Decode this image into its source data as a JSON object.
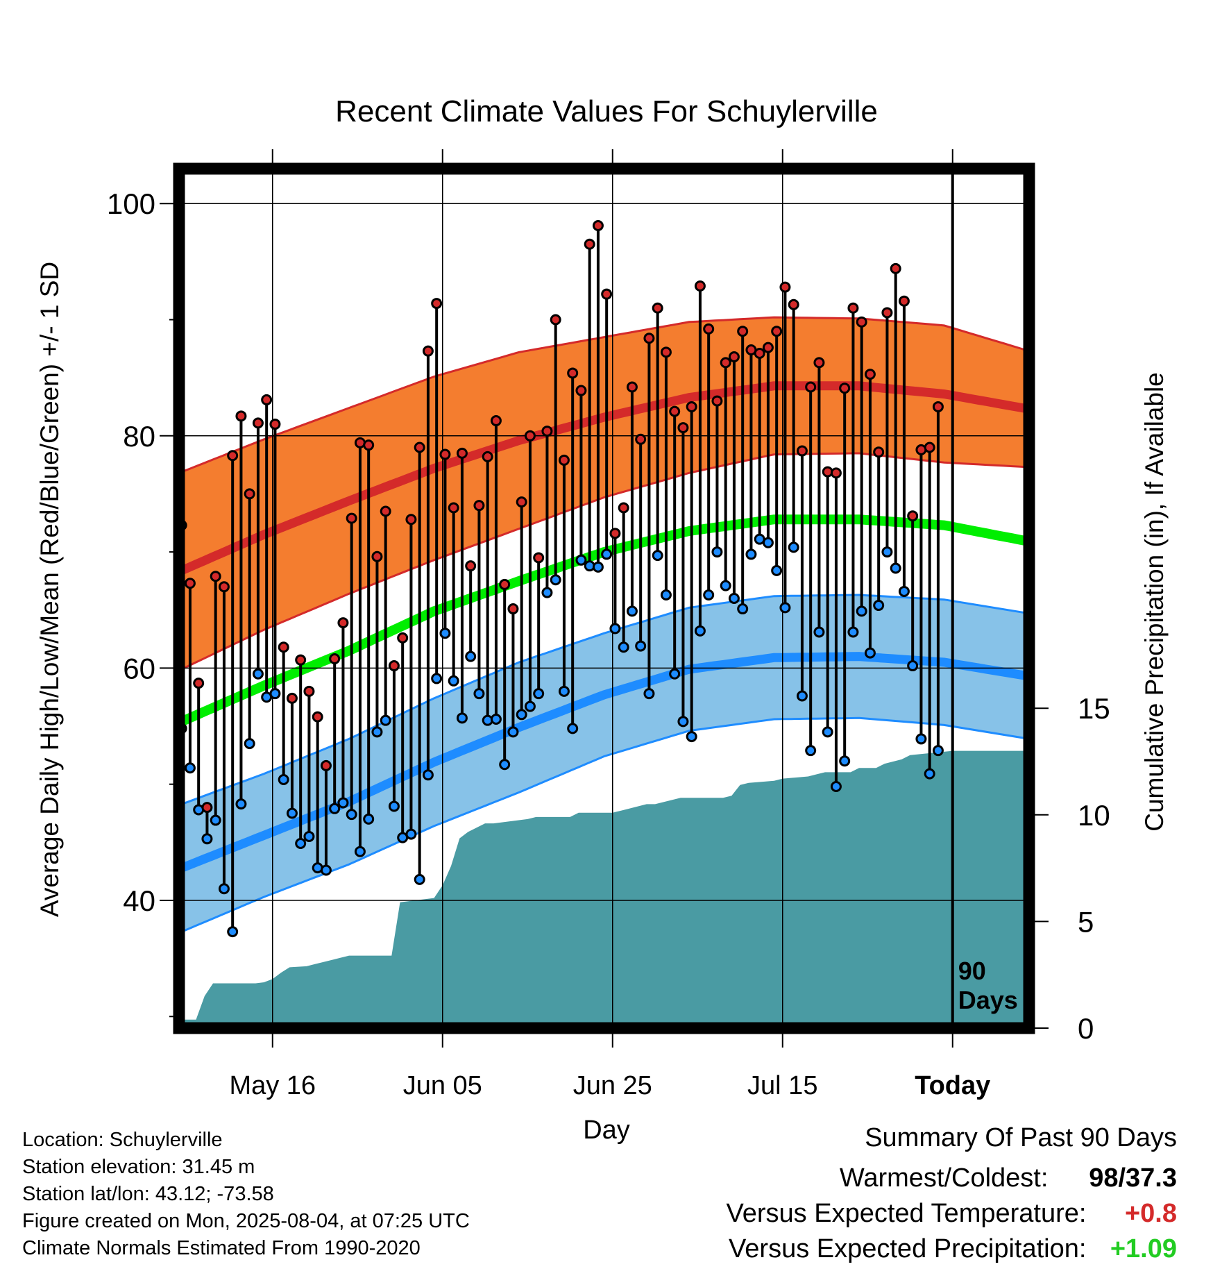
{
  "chart_data": {
    "type": "line",
    "title": "Recent Climate Values For Schuylerville",
    "xlabel": "Day",
    "ylabel": "Average Daily High/Low/Mean (Red/Blue/Green) +/- 1 SD",
    "y2label": "Cumulative Precipitation (in), If Available",
    "ylim": [
      29,
      103
    ],
    "y2lim": [
      0,
      40.3
    ],
    "yticks": [
      100,
      80,
      60,
      40
    ],
    "y2ticks": [
      15,
      10,
      5,
      0
    ],
    "x_range_days": [
      0,
      100
    ],
    "xticks": [
      {
        "label": "May 16",
        "day": 11
      },
      {
        "label": "Jun 05",
        "day": 31
      },
      {
        "label": "Jun 25",
        "day": 51
      },
      {
        "label": "Jul 15",
        "day": 71
      },
      {
        "label": "Today",
        "day": 91
      }
    ],
    "today_marker": {
      "day": 91,
      "label_line1": "90",
      "label_line2": "Days"
    },
    "grid": true,
    "normals": {
      "days": [
        0,
        10,
        20,
        30,
        40,
        50,
        60,
        70,
        80,
        90,
        100
      ],
      "high_mean": [
        68.3,
        71.5,
        74.4,
        77.2,
        79.6,
        81.6,
        83.3,
        84.3,
        84.3,
        83.6,
        82.3
      ],
      "high_sd": [
        8.5,
        8.2,
        8.0,
        7.9,
        7.6,
        6.9,
        6.5,
        5.9,
        5.8,
        5.9,
        5.0
      ],
      "low_mean": [
        42.7,
        45.6,
        48.5,
        51.9,
        54.9,
        57.7,
        59.9,
        60.9,
        61.0,
        60.5,
        59.3
      ],
      "low_sd": [
        5.5,
        5.3,
        5.4,
        5.5,
        5.6,
        5.3,
        5.3,
        5.3,
        5.3,
        5.4,
        5.4
      ],
      "mean": [
        55.3,
        58.5,
        61.5,
        64.9,
        67.5,
        70.0,
        71.8,
        72.8,
        72.8,
        72.3,
        70.9
      ],
      "colors": {
        "high_band": "#f47d2f",
        "high_line": "#d42a2a",
        "low_band": "#87c2e8",
        "low_line": "#1e8cff",
        "mean_line": "#00ee00"
      }
    },
    "series": [
      {
        "name": "High",
        "color": "#d42a2a",
        "values": [
          72.3,
          67.3,
          58.7,
          48.0,
          67.9,
          67.0,
          78.3,
          81.7,
          75.0,
          81.1,
          83.1,
          81.0,
          61.8,
          57.4,
          60.7,
          58.0,
          55.8,
          51.6,
          60.8,
          63.9,
          72.9,
          79.4,
          79.2,
          69.6,
          73.5,
          60.2,
          62.6,
          72.8,
          79.0,
          87.3,
          91.4,
          78.4,
          73.8,
          78.5,
          68.8,
          74.0,
          78.2,
          81.3,
          67.2,
          65.1,
          74.3,
          80.0,
          69.5,
          80.4,
          90.0,
          77.9,
          85.4,
          83.9,
          96.5,
          98.1,
          92.2,
          71.6,
          73.8,
          84.2,
          79.7,
          88.4,
          91.0,
          87.2,
          82.1,
          80.7,
          82.5,
          92.9,
          89.2,
          83.0,
          86.3,
          86.8,
          89.0,
          87.4,
          87.1,
          87.6,
          89.0,
          92.8,
          91.3,
          78.7,
          84.2,
          86.3,
          76.9,
          76.8,
          84.1,
          91.0,
          89.8,
          85.3,
          78.6,
          90.6,
          94.4,
          91.6,
          73.1,
          78.8,
          79.0,
          82.5
        ]
      },
      {
        "name": "Low",
        "color": "#1e8cff",
        "values": [
          54.8,
          51.4,
          47.8,
          45.3,
          46.9,
          41.0,
          37.3,
          48.3,
          53.5,
          59.5,
          57.5,
          57.8,
          50.4,
          47.5,
          44.9,
          45.5,
          42.8,
          42.6,
          47.9,
          48.4,
          47.4,
          44.2,
          47.0,
          54.5,
          55.5,
          48.1,
          45.4,
          45.7,
          41.8,
          50.8,
          59.1,
          63.0,
          58.9,
          55.7,
          61.0,
          57.8,
          55.5,
          55.6,
          51.7,
          54.5,
          56.0,
          56.7,
          57.8,
          66.5,
          67.6,
          58.0,
          54.8,
          69.3,
          68.8,
          68.7,
          69.8,
          63.4,
          61.8,
          64.9,
          61.9,
          57.8,
          69.7,
          66.3,
          59.5,
          55.4,
          54.1,
          63.2,
          66.3,
          70.0,
          67.1,
          66.0,
          65.1,
          69.8,
          71.1,
          70.8,
          68.4,
          65.2,
          70.4,
          57.6,
          52.9,
          63.1,
          54.5,
          49.8,
          52.0,
          63.1,
          64.9,
          61.3,
          65.4,
          70.0,
          68.6,
          66.6,
          60.2,
          53.9,
          50.9,
          52.9
        ]
      },
      {
        "name": "Cumulative Precipitation",
        "color": "#4a9ba3",
        "days": [
          0,
          2,
          3,
          4,
          9,
          10,
          11,
          12,
          13,
          15,
          16,
          17,
          18,
          19,
          20,
          25,
          26,
          30,
          31,
          32,
          33,
          34,
          36,
          37,
          41,
          42,
          43,
          46,
          47,
          51,
          52,
          53,
          55,
          56,
          59,
          60,
          64,
          65,
          66,
          67,
          70,
          71,
          74,
          75,
          76,
          79,
          80,
          82,
          83,
          85,
          86,
          91,
          100
        ],
        "values": [
          0.4,
          0.4,
          1.5,
          2.1,
          2.1,
          2.15,
          2.3,
          2.6,
          2.85,
          2.9,
          3.0,
          3.1,
          3.2,
          3.3,
          3.4,
          3.4,
          5.9,
          6.1,
          6.7,
          7.6,
          8.9,
          9.2,
          9.6,
          9.6,
          9.8,
          9.9,
          9.9,
          9.9,
          10.1,
          10.1,
          10.2,
          10.3,
          10.5,
          10.5,
          10.8,
          10.8,
          10.8,
          10.9,
          11.4,
          11.5,
          11.6,
          11.7,
          11.8,
          11.9,
          12.0,
          12.0,
          12.2,
          12.2,
          12.4,
          12.6,
          12.8,
          13.0,
          13.0
        ]
      }
    ]
  },
  "footer": {
    "location": "Location: Schuylerville",
    "elevation": "Station elevation: 31.45 m",
    "latlon": "Station lat/lon: 43.12; -73.58",
    "created": "Figure created on Mon, 2025-08-04, at 07:25 UTC",
    "normals_note": "Climate Normals Estimated From 1990-2020"
  },
  "summary": {
    "title": "Summary Of Past 90 Days",
    "warmest_coldest_label": "Warmest/Coldest:",
    "warmest_value": "98",
    "coldest_value": "/37.3",
    "temp_label": "Versus Expected Temperature:",
    "temp_value": "+0.8",
    "temp_color": "#d42a2a",
    "precip_label": "Versus Expected Precipitation:",
    "precip_value": "+1.09",
    "precip_color": "#22cc22"
  }
}
